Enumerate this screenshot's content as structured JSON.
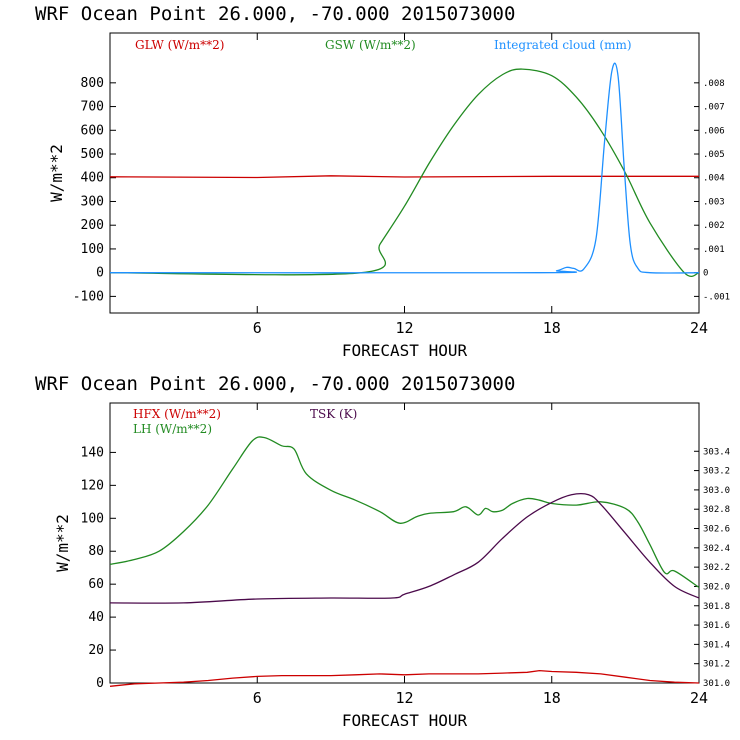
{
  "chart_data": [
    {
      "type": "line",
      "title": "WRF   Ocean Point   26.000, -70.000  2015073000",
      "xlabel": "FORECAST HOUR",
      "ylabel": "W/m**2",
      "xlim": [
        0,
        24
      ],
      "ylim": [
        -170,
        1010
      ],
      "xticks": [
        6,
        12,
        18,
        24
      ],
      "yticks": [
        -100,
        0,
        100,
        200,
        300,
        400,
        500,
        600,
        700,
        800
      ],
      "y2lim": [
        -0.0017,
        0.0101
      ],
      "y2ticks": [
        -0.001,
        0,
        0.001,
        0.002,
        0.003,
        0.004,
        0.005,
        0.006,
        0.007,
        0.008
      ],
      "y2ticklabels": [
        "-.001",
        "0",
        ".001",
        ".002",
        ".003",
        ".004",
        ".005",
        ".006",
        ".007",
        ".008"
      ],
      "series": [
        {
          "name": "GLW (W/m**2)",
          "color": "#cc0000",
          "axis": "left",
          "x": [
            0,
            6,
            9,
            12,
            18,
            24
          ],
          "y": [
            404,
            401,
            408,
            403,
            406,
            406
          ]
        },
        {
          "name": "GSW (W/m**2)",
          "color": "#228b22",
          "axis": "left",
          "x": [
            0,
            10.25,
            11,
            12,
            13,
            14,
            15,
            16,
            16.8,
            18,
            19,
            20,
            21,
            22,
            23.4,
            24
          ],
          "y": [
            0,
            0,
            120,
            280,
            460,
            620,
            750,
            835,
            858,
            830,
            740,
            600,
            420,
            210,
            0,
            0
          ],
          "smooth": true
        },
        {
          "name": "Integrated cloud (mm)",
          "color": "#1e90ff",
          "axis": "right",
          "x": [
            0,
            17.5,
            18.2,
            18.6,
            18.9,
            19.3,
            19.8,
            20.15,
            20.45,
            20.7,
            20.95,
            21.2,
            21.5,
            22,
            24
          ],
          "y": [
            0,
            0,
            8e-05,
            0.00022,
            0.00018,
            0.00015,
            0.0014,
            0.0055,
            0.0085,
            0.0083,
            0.0045,
            0.0012,
            0.0002,
            0,
            0
          ],
          "smooth": true
        }
      ]
    },
    {
      "type": "line",
      "title": "WRF   Ocean Point   26.000, -70.000  2015073000",
      "xlabel": "FORECAST HOUR",
      "ylabel": "W/m**2",
      "xlim": [
        0,
        24
      ],
      "ylim": [
        0,
        170
      ],
      "xticks": [
        6,
        12,
        18,
        24
      ],
      "yticks": [
        0,
        20,
        40,
        60,
        80,
        100,
        120,
        140
      ],
      "y2lim": [
        301.0,
        303.9
      ],
      "y2ticks": [
        301.0,
        301.2,
        301.4,
        301.6,
        301.8,
        302.0,
        302.2,
        302.4,
        302.6,
        302.8,
        303.0,
        303.2,
        303.4
      ],
      "y2ticklabels": [
        "301.0",
        "301.2",
        "301.4",
        "301.6",
        "301.8",
        "302.0",
        "302.2",
        "302.4",
        "302.6",
        "302.8",
        "303.0",
        "303.2",
        "303.4"
      ],
      "series": [
        {
          "name": "HFX (W/m**2)",
          "color": "#cc0000",
          "axis": "left",
          "x": [
            0,
            1,
            2,
            3,
            4,
            5,
            6,
            7,
            8,
            9,
            10,
            11,
            12,
            13,
            14,
            15,
            16,
            17,
            17.5,
            18,
            19,
            20,
            21,
            22,
            23,
            24
          ],
          "y": [
            -2,
            -0.5,
            0,
            0.5,
            1.5,
            3,
            4,
            4.5,
            4.5,
            4.5,
            5,
            5.5,
            5,
            5.5,
            5.5,
            5.5,
            6,
            6.5,
            7.5,
            7,
            6.5,
            5.5,
            3.5,
            1.5,
            0.5,
            0
          ]
        },
        {
          "name": "LH (W/m**2)",
          "color": "#228b22",
          "axis": "left",
          "x": [
            0,
            1,
            2,
            3,
            4,
            5,
            5.8,
            6.3,
            7,
            7.5,
            8,
            9,
            10,
            11,
            11.8,
            12.5,
            13,
            14,
            14.5,
            15,
            15.3,
            15.6,
            16,
            16.4,
            17,
            17.5,
            18,
            19,
            20,
            21,
            21.5,
            22,
            22.6,
            23,
            24
          ],
          "y": [
            72,
            75,
            80,
            92,
            108,
            130,
            147,
            149,
            144,
            142,
            127,
            117,
            111,
            104,
            97,
            101,
            103,
            104,
            107,
            102,
            106,
            104,
            105,
            109,
            112,
            111,
            109,
            108,
            110,
            106,
            98,
            84,
            67,
            68,
            58
          ],
          "smooth": true
        },
        {
          "name": "TSK (K)",
          "color": "#4b0a4b",
          "axis": "right",
          "x": [
            0,
            3,
            6,
            9,
            11.5,
            12,
            13,
            14,
            15,
            16,
            17,
            18,
            18.8,
            19.5,
            20,
            21,
            22,
            23,
            24
          ],
          "y": [
            301.83,
            301.83,
            301.87,
            301.88,
            301.88,
            301.92,
            302.0,
            302.12,
            302.25,
            302.5,
            302.72,
            302.87,
            302.95,
            302.95,
            302.85,
            302.55,
            302.25,
            302.0,
            301.88
          ],
          "smooth": true
        }
      ]
    }
  ]
}
